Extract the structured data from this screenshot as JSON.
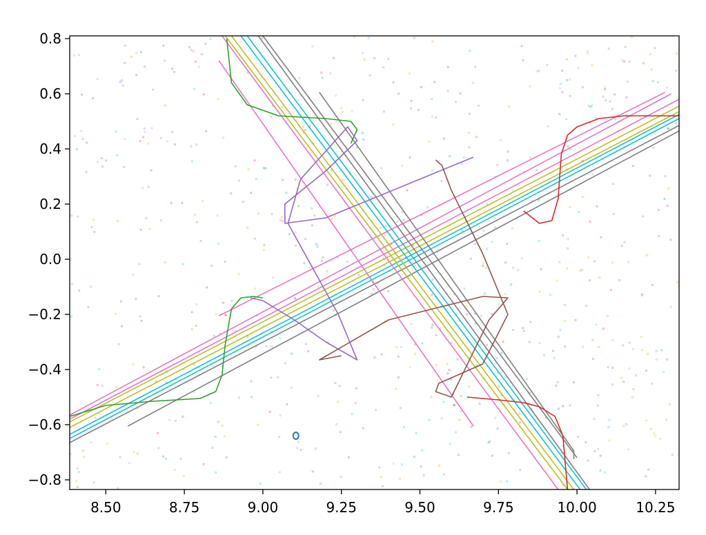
{
  "chart_data": {
    "type": "line",
    "title": "",
    "xlabel": "",
    "ylabel": "",
    "xlim": [
      8.385,
      10.325
    ],
    "ylim": [
      -0.835,
      0.81
    ],
    "grid": false,
    "legend": "none",
    "x_ticks": [
      8.5,
      8.75,
      9.0,
      9.25,
      9.5,
      9.75,
      10.0,
      10.25
    ],
    "x_tick_labels": [
      "8.50",
      "8.75",
      "9.00",
      "9.25",
      "9.50",
      "9.75",
      "10.00",
      "10.25"
    ],
    "y_ticks": [
      0.8,
      0.6,
      0.4,
      0.2,
      0.0,
      -0.2,
      -0.4,
      -0.6,
      -0.8
    ],
    "y_tick_labels": [
      "0.8",
      "0.6",
      "0.4",
      "0.2",
      "0.0",
      "−0.2",
      "−0.4",
      "−0.6",
      "−0.8"
    ],
    "series": [
      {
        "color": "#bcbd22",
        "x": [
          8.385,
          10.325
        ],
        "y": [
          -0.59,
          0.555
        ]
      },
      {
        "color": "#bcbd22",
        "x": [
          8.385,
          10.325
        ],
        "y": [
          -0.61,
          0.535
        ]
      },
      {
        "color": "#17becf",
        "x": [
          8.385,
          10.325
        ],
        "y": [
          -0.635,
          0.525
        ]
      },
      {
        "color": "#17becf",
        "x": [
          8.385,
          10.325
        ],
        "y": [
          -0.65,
          0.51
        ]
      },
      {
        "color": "#e377c2",
        "x": [
          8.385,
          10.3
        ],
        "y": [
          -0.565,
          0.6
        ]
      },
      {
        "color": "#e377c2",
        "x": [
          8.385,
          10.325
        ],
        "y": [
          -0.58,
          0.58
        ]
      },
      {
        "color": "#7f7f7f",
        "x": [
          8.385,
          10.325
        ],
        "y": [
          -0.665,
          0.485
        ]
      },
      {
        "color": "#7f7f7f",
        "x": [
          8.57,
          10.325
        ],
        "y": [
          -0.605,
          0.465
        ]
      },
      {
        "color": "#e377c2",
        "x": [
          8.86,
          10.28
        ],
        "y": [
          -0.205,
          0.605
        ]
      },
      {
        "color": "#bcbd22",
        "x": [
          8.88,
          9.97
        ],
        "y": [
          0.81,
          -0.835
        ]
      },
      {
        "color": "#bcbd22",
        "x": [
          8.9,
          9.99
        ],
        "y": [
          0.81,
          -0.835
        ]
      },
      {
        "color": "#17becf",
        "x": [
          8.93,
          10.01
        ],
        "y": [
          0.81,
          -0.835
        ]
      },
      {
        "color": "#17becf",
        "x": [
          8.95,
          10.03
        ],
        "y": [
          0.81,
          -0.835
        ]
      },
      {
        "color": "#e377c2",
        "x": [
          8.87,
          9.94
        ],
        "y": [
          0.81,
          -0.835
        ]
      },
      {
        "color": "#e377c2",
        "x": [
          8.86,
          9.67
        ],
        "y": [
          0.72,
          -0.605
        ]
      },
      {
        "color": "#7f7f7f",
        "x": [
          8.985,
          10.04
        ],
        "y": [
          0.81,
          -0.835
        ]
      },
      {
        "color": "#7f7f7f",
        "x": [
          9.18,
          9.99,
          9.99
        ],
        "y": [
          0.605,
          -0.695,
          -0.725
        ]
      },
      {
        "color": "#7f7f7f",
        "x": [
          9.0,
          10.0
        ],
        "y": [
          0.81,
          -0.72
        ]
      },
      {
        "color": "#2ca02c",
        "x": [
          8.885,
          8.9,
          8.95,
          9.05,
          9.2,
          9.28,
          9.3,
          9.28
        ],
        "y": [
          0.8,
          0.64,
          0.56,
          0.52,
          0.51,
          0.5,
          0.47,
          0.42
        ]
      },
      {
        "color": "#2ca02c",
        "x": [
          8.385,
          8.5,
          8.65,
          8.8,
          8.85,
          8.87,
          8.88,
          8.9,
          8.93,
          8.97,
          9.0
        ],
        "y": [
          -0.57,
          -0.53,
          -0.515,
          -0.505,
          -0.48,
          -0.42,
          -0.31,
          -0.18,
          -0.14,
          -0.135,
          -0.14
        ]
      },
      {
        "color": "#d62728",
        "x": [
          9.65,
          9.75,
          9.83,
          9.88,
          9.93,
          9.955,
          9.97
        ],
        "y": [
          -0.5,
          -0.51,
          -0.52,
          -0.535,
          -0.57,
          -0.64,
          -0.835
        ]
      },
      {
        "color": "#d62728",
        "x": [
          9.83,
          9.88,
          9.92,
          9.94,
          9.95,
          9.97,
          10.0,
          10.07,
          10.15,
          10.325
        ],
        "y": [
          0.175,
          0.13,
          0.14,
          0.22,
          0.38,
          0.45,
          0.48,
          0.51,
          0.52,
          0.52
        ]
      },
      {
        "color": "#9467bd",
        "x": [
          9.67,
          9.2,
          9.07,
          9.07,
          9.2,
          9.3,
          9.27,
          9.12,
          9.08,
          9.24,
          9.3,
          9.2,
          9.1,
          9.0,
          8.96
        ],
        "y": [
          0.37,
          0.15,
          0.13,
          0.2,
          0.32,
          0.43,
          0.48,
          0.29,
          0.13,
          -0.2,
          -0.365,
          -0.3,
          -0.22,
          -0.15,
          -0.14
        ]
      },
      {
        "color": "#8c564b",
        "x": [
          9.55,
          9.57,
          9.6,
          9.7,
          9.78,
          9.7,
          9.56,
          9.55,
          9.6,
          9.72,
          9.78,
          9.7,
          9.4,
          9.18,
          9.25
        ],
        "y": [
          0.36,
          0.34,
          0.25,
          0.02,
          -0.2,
          -0.38,
          -0.45,
          -0.48,
          -0.5,
          -0.22,
          -0.14,
          -0.135,
          -0.22,
          -0.365,
          -0.35
        ]
      }
    ],
    "scatter_clusters": [
      {
        "color": "#1f77b4",
        "cx": 9.105,
        "cy": -0.64,
        "kind": "ring"
      }
    ]
  }
}
